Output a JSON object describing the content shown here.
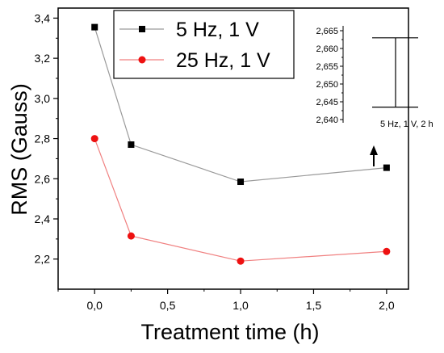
{
  "chart_data": {
    "type": "line",
    "xlabel": "Treatment time (h)",
    "ylabel": "RMS (Gauss)",
    "xlim": [
      -0.25,
      2.15
    ],
    "ylim": [
      2.05,
      3.45
    ],
    "x_ticks": [
      "0,0",
      "0,5",
      "1,0",
      "1,5",
      "2,0"
    ],
    "y_ticks": [
      "2,2",
      "2,4",
      "2,6",
      "2,8",
      "3,0",
      "3,2",
      "3,4"
    ],
    "series": [
      {
        "name": "5 Hz, 1 V",
        "marker": "square",
        "marker_color": "#000000",
        "line_color": "#9a9a9a",
        "x": [
          0,
          0.25,
          1.0,
          2.0
        ],
        "y": [
          3.355,
          2.77,
          2.585,
          2.655
        ]
      },
      {
        "name": "25 Hz, 1 V",
        "marker": "circle",
        "marker_color": "#ee1111",
        "line_color": "#f08080",
        "x": [
          0,
          0.25,
          1.0,
          2.0
        ],
        "y": [
          2.8,
          2.315,
          2.19,
          2.238
        ]
      }
    ],
    "legend_position": "top-center",
    "inset": {
      "y_ticks": [
        "2,665",
        "2,660",
        "2,655",
        "2,650",
        "2,645",
        "2,640"
      ],
      "ylim": [
        2.64,
        2.665
      ],
      "error_bar_low": 2.6435,
      "error_bar_high": 2.663,
      "label": "5 Hz, 1 V, 2 h"
    }
  }
}
